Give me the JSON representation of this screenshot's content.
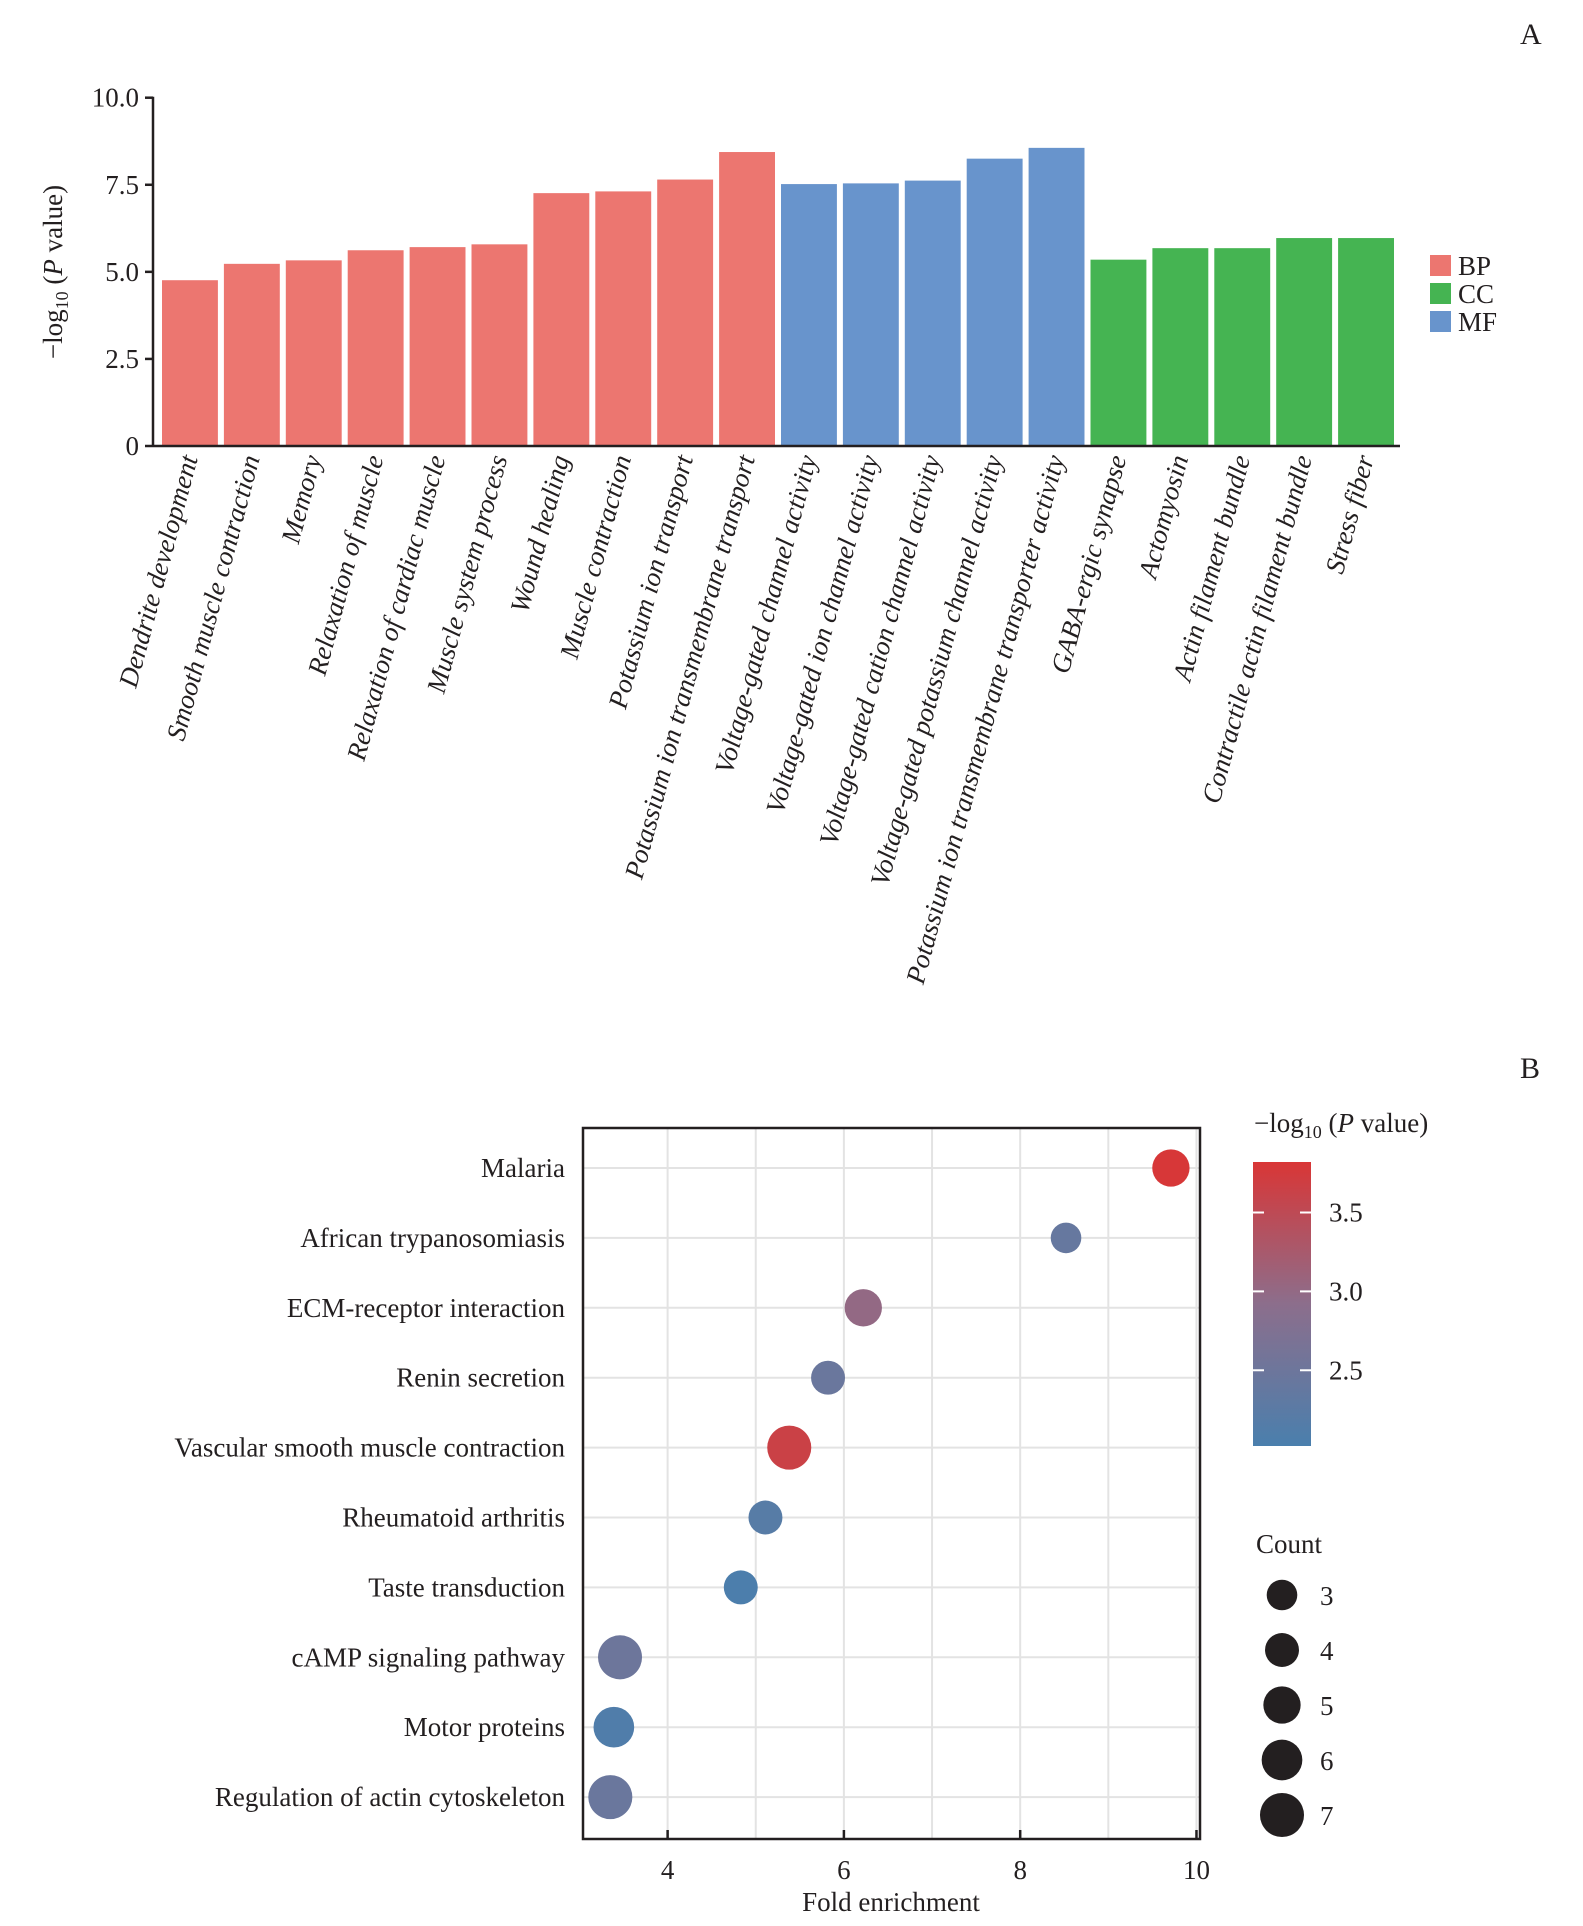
{
  "panel_labels": {
    "a": "A",
    "b": "B"
  },
  "chart_data": [
    {
      "type": "bar",
      "panel": "A",
      "ylabel_parts": {
        "prefix": "−log",
        "sub": "10",
        "open": " (",
        "italic": "P",
        "rest": " value)"
      },
      "ylim": [
        0,
        10
      ],
      "yticks": [
        0,
        2.5,
        5.0,
        7.5,
        10.0
      ],
      "ytick_labels": [
        "0",
        "2.5",
        "5.0",
        "7.5",
        "10.0"
      ],
      "grid": false,
      "legend_position": "right",
      "legend": [
        {
          "name": "BP",
          "color": "#ec7670"
        },
        {
          "name": "CC",
          "color": "#45b452"
        },
        {
          "name": "MF",
          "color": "#6894cc"
        }
      ],
      "categories": [
        "Dendrite development",
        "Smooth muscle contraction",
        "Memory",
        "Relaxation of muscle",
        "Relaxation of cardiac muscle",
        "Muscle system process",
        "Wound healing",
        "Muscle contraction",
        "Potassium ion transport",
        "Potassium ion transmembrane transport",
        "Voltage-gated channel activity",
        "Voltage-gated ion channel activity",
        "Voltage-gated cation channel activity",
        "Voltage-gated potassium channel activity",
        "Potassium ion transmembrane transporter activity",
        "GABA-ergic synapse",
        "Actomyosin",
        "Actin filament bundle",
        "Contractile actin filament bundle",
        "Stress fiber"
      ],
      "groups": [
        "BP",
        "BP",
        "BP",
        "BP",
        "BP",
        "BP",
        "BP",
        "BP",
        "BP",
        "BP",
        "MF",
        "MF",
        "MF",
        "MF",
        "MF",
        "CC",
        "CC",
        "CC",
        "CC",
        "CC"
      ],
      "values": [
        4.76,
        5.23,
        5.33,
        5.62,
        5.71,
        5.79,
        7.26,
        7.31,
        7.65,
        8.44,
        7.52,
        7.54,
        7.62,
        8.25,
        8.56,
        5.35,
        5.68,
        5.68,
        5.97,
        5.97
      ]
    },
    {
      "type": "scatter",
      "panel": "B",
      "xlabel": "Fold enrichment",
      "xlim": [
        3.04,
        10.04
      ],
      "xticks": [
        4,
        6,
        8,
        10
      ],
      "xtick_labels": [
        "4",
        "6",
        "8",
        "10"
      ],
      "minor_xgrid": [
        5,
        7,
        9
      ],
      "grid": true,
      "categories": [
        "Malaria",
        "African trypanosomiasis",
        "ECM-receptor interaction",
        "Renin secretion",
        "Vascular smooth muscle contraction",
        "Rheumatoid arthritis",
        "Taste transduction",
        "cAMP signaling pathway",
        "Motor proteins",
        "Regulation of actin cytoskeleton"
      ],
      "fold_enrichment": [
        9.71,
        8.52,
        6.22,
        5.82,
        5.38,
        5.11,
        4.83,
        3.46,
        3.39,
        3.35
      ],
      "count": [
        5,
        3,
        5,
        4,
        7,
        4,
        4,
        7,
        6,
        7
      ],
      "neg_log10_p": [
        3.8,
        2.4,
        3.0,
        2.45,
        3.65,
        2.2,
        2.05,
        2.5,
        2.1,
        2.45
      ],
      "colorbar": {
        "title_parts": {
          "prefix": "−log",
          "sub": "10",
          "open": " (",
          "italic": "P",
          "rest": " value)"
        },
        "range": [
          2.02,
          3.82
        ],
        "ticks": [
          2.5,
          3.0,
          3.5
        ],
        "tick_labels": [
          "2.5",
          "3.0",
          "3.5"
        ],
        "low_color": "#4a7fad",
        "mid_color": "#8c6e8c",
        "high_color": "#d93636",
        "legend_position": "right"
      },
      "size_legend": {
        "title": "Count",
        "values": [
          3,
          4,
          5,
          6,
          7
        ],
        "labels": [
          "3",
          "4",
          "5",
          "6",
          "7"
        ]
      }
    }
  ]
}
